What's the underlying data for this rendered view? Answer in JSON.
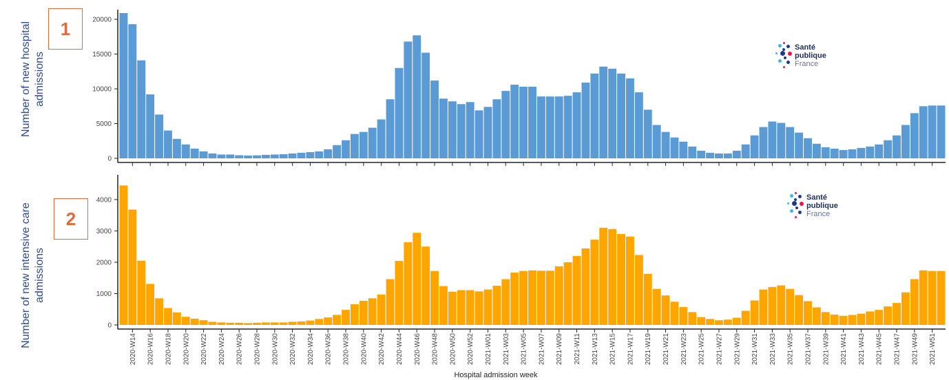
{
  "panel1": {
    "number": "1",
    "ylabel_line1": "Number of new hospital",
    "ylabel_line2": "admissions",
    "color": "#5b9bd5"
  },
  "panel2": {
    "number": "2",
    "ylabel_line1": "Number of new intensive care",
    "ylabel_line2": "admissions",
    "color": "#ffa500"
  },
  "logo": {
    "line1": "Santé",
    "line2": "publique",
    "line3": "France",
    "colors": {
      "dark": "#1f3a8c",
      "red": "#e8174b",
      "light": "#3fb6e8"
    }
  },
  "chart_data": [
    {
      "type": "bar",
      "title": "",
      "ylabel": "Number of new hospital admissions",
      "xlabel": "",
      "ylim": [
        0,
        21000
      ],
      "yticks": [
        0,
        5000,
        10000,
        15000,
        20000
      ],
      "categories": [
        "2020-W13",
        "2020-W14",
        "2020-W15",
        "2020-W16",
        "2020-W17",
        "2020-W18",
        "2020-W19",
        "2020-W20",
        "2020-W21",
        "2020-W22",
        "2020-W23",
        "2020-W24",
        "2020-W25",
        "2020-W26",
        "2020-W27",
        "2020-W28",
        "2020-W29",
        "2020-W30",
        "2020-W31",
        "2020-W32",
        "2020-W33",
        "2020-W34",
        "2020-W35",
        "2020-W36",
        "2020-W37",
        "2020-W38",
        "2020-W39",
        "2020-W40",
        "2020-W41",
        "2020-W42",
        "2020-W43",
        "2020-W44",
        "2020-W45",
        "2020-W46",
        "2020-W47",
        "2020-W48",
        "2020-W49",
        "2020-W50",
        "2020-W51",
        "2020-W52",
        "2020-W53",
        "2021-W01",
        "2021-W02",
        "2021-W03",
        "2021-W04",
        "2021-W05",
        "2021-W06",
        "2021-W07",
        "2021-W08",
        "2021-W09",
        "2021-W10",
        "2021-W11",
        "2021-W12",
        "2021-W13",
        "2021-W14",
        "2021-W15",
        "2021-W16",
        "2021-W17",
        "2021-W18",
        "2021-W19",
        "2021-W20",
        "2021-W21",
        "2021-W22",
        "2021-W23",
        "2021-W24",
        "2021-W25",
        "2021-W26",
        "2021-W27",
        "2021-W28",
        "2021-W29",
        "2021-W30",
        "2021-W31",
        "2021-W32",
        "2021-W33",
        "2021-W34",
        "2021-W35",
        "2021-W36",
        "2021-W37",
        "2021-W38",
        "2021-W39",
        "2021-W40",
        "2021-W41",
        "2021-W42",
        "2021-W43",
        "2021-W44",
        "2021-W45",
        "2021-W46",
        "2021-W47",
        "2021-W48",
        "2021-W49",
        "2021-W50",
        "2021-W51",
        "2021-W52"
      ],
      "values": [
        20900,
        19300,
        14100,
        9200,
        6300,
        4000,
        2800,
        2000,
        1400,
        1000,
        700,
        550,
        550,
        450,
        400,
        430,
        500,
        550,
        600,
        700,
        800,
        900,
        1000,
        1300,
        1900,
        2600,
        3500,
        3800,
        4400,
        5600,
        8500,
        13000,
        16800,
        17700,
        15200,
        11200,
        8600,
        8200,
        7800,
        8100,
        6900,
        7400,
        8500,
        9700,
        10600,
        10300,
        10300,
        8900,
        8900,
        8900,
        9000,
        9500,
        10900,
        12200,
        13200,
        12900,
        12200,
        11500,
        9500,
        7000,
        4800,
        3800,
        3000,
        2400,
        1700,
        1100,
        800,
        700,
        700,
        1100,
        2000,
        3300,
        4500,
        5300,
        5100,
        4500,
        3700,
        2900,
        2100,
        1600,
        1400,
        1200,
        1300,
        1500,
        1700,
        2000,
        2600,
        3300,
        4800,
        6500,
        7500,
        7600,
        7600
      ],
      "x_tick_labels": [
        "2020-W14",
        "2020-W16",
        "2020-W18",
        "2020-W20",
        "2020-W22",
        "2020-W24",
        "2020-W26",
        "2020-W28",
        "2020-W30",
        "2020-W32",
        "2020-W34",
        "2020-W36",
        "2020-W38",
        "2020-W40",
        "2020-W42",
        "2020-W44",
        "2020-W46",
        "2020-W48",
        "2020-W50",
        "2020-W52",
        "2021-W01",
        "2021-W03",
        "2021-W05",
        "2021-W07",
        "2021-W09",
        "2021-W11",
        "2021-W13",
        "2021-W15",
        "2021-W17",
        "2021-W19",
        "2021-W21",
        "2021-W23",
        "2021-W25",
        "2021-W27",
        "2021-W29",
        "2021-W31",
        "2021-W33",
        "2021-W35",
        "2021-W37",
        "2021-W39",
        "2021-W41",
        "2021-W43",
        "2021-W45",
        "2021-W47",
        "2021-W49",
        "2021-W51"
      ],
      "grid": false
    },
    {
      "type": "bar",
      "title": "",
      "ylabel": "Number of new intensive care admissions",
      "xlabel": "Hospital admission week",
      "ylim": [
        0,
        4700
      ],
      "yticks": [
        0,
        1000,
        2000,
        3000,
        4000
      ],
      "categories": [
        "2020-W13",
        "2020-W14",
        "2020-W15",
        "2020-W16",
        "2020-W17",
        "2020-W18",
        "2020-W19",
        "2020-W20",
        "2020-W21",
        "2020-W22",
        "2020-W23",
        "2020-W24",
        "2020-W25",
        "2020-W26",
        "2020-W27",
        "2020-W28",
        "2020-W29",
        "2020-W30",
        "2020-W31",
        "2020-W32",
        "2020-W33",
        "2020-W34",
        "2020-W35",
        "2020-W36",
        "2020-W37",
        "2020-W38",
        "2020-W39",
        "2020-W40",
        "2020-W41",
        "2020-W42",
        "2020-W43",
        "2020-W44",
        "2020-W45",
        "2020-W46",
        "2020-W47",
        "2020-W48",
        "2020-W49",
        "2020-W50",
        "2020-W51",
        "2020-W52",
        "2020-W53",
        "2021-W01",
        "2021-W02",
        "2021-W03",
        "2021-W04",
        "2021-W05",
        "2021-W06",
        "2021-W07",
        "2021-W08",
        "2021-W09",
        "2021-W10",
        "2021-W11",
        "2021-W12",
        "2021-W13",
        "2021-W14",
        "2021-W15",
        "2021-W16",
        "2021-W17",
        "2021-W18",
        "2021-W19",
        "2021-W20",
        "2021-W21",
        "2021-W22",
        "2021-W23",
        "2021-W24",
        "2021-W25",
        "2021-W26",
        "2021-W27",
        "2021-W28",
        "2021-W29",
        "2021-W30",
        "2021-W31",
        "2021-W32",
        "2021-W33",
        "2021-W34",
        "2021-W35",
        "2021-W36",
        "2021-W37",
        "2021-W38",
        "2021-W39",
        "2021-W40",
        "2021-W41",
        "2021-W42",
        "2021-W43",
        "2021-W44",
        "2021-W45",
        "2021-W46",
        "2021-W47",
        "2021-W48",
        "2021-W49",
        "2021-W50",
        "2021-W51",
        "2021-W52"
      ],
      "values": [
        4450,
        3680,
        2050,
        1310,
        850,
        540,
        400,
        260,
        200,
        150,
        100,
        80,
        70,
        70,
        60,
        70,
        80,
        80,
        80,
        100,
        110,
        140,
        190,
        240,
        320,
        480,
        660,
        770,
        850,
        970,
        1460,
        2040,
        2640,
        2940,
        2500,
        1720,
        1240,
        1060,
        1110,
        1110,
        1070,
        1130,
        1250,
        1460,
        1670,
        1720,
        1740,
        1730,
        1730,
        1870,
        2000,
        2200,
        2440,
        2720,
        3100,
        3060,
        2900,
        2820,
        2230,
        1630,
        1150,
        940,
        740,
        570,
        410,
        250,
        190,
        150,
        170,
        230,
        450,
        780,
        1130,
        1210,
        1260,
        1150,
        950,
        760,
        560,
        410,
        330,
        290,
        320,
        360,
        430,
        480,
        590,
        700,
        1040,
        1460,
        1740,
        1720,
        1720
      ]
    }
  ]
}
